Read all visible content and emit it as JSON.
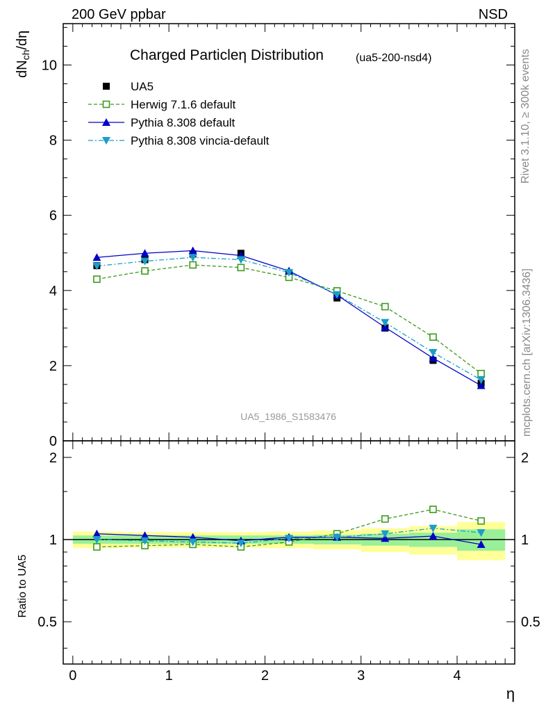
{
  "header": {
    "left": "200 GeV ppbar",
    "right": "NSD",
    "title": "Charged Particleη Distribution",
    "subtitle": "(ua5-200-nsd4)",
    "watermark": "UA5_1986_S1583476",
    "side_top": "Rivet 3.1.10, ≥ 300k events",
    "side_bottom": "mcplots.cern.ch [arXiv:1306.3436]"
  },
  "colors": {
    "data": "#000000",
    "herwig": "#3a9a1a",
    "pythia": "#0000c8",
    "vincia": "#1a9ec8",
    "band_outer": "#ffff99",
    "band_inner": "#99f099"
  },
  "chart_data": [
    {
      "type": "line",
      "panel": "main",
      "xlim": [
        -0.1,
        4.6
      ],
      "ylim": [
        0,
        11.1
      ],
      "ylabel": "dN_ch/dη",
      "yticks": [
        0,
        2,
        4,
        6,
        8,
        10
      ],
      "ytick_labels": [
        "0",
        "2",
        "4",
        "6",
        "8",
        "10"
      ],
      "legend_position": "top-left",
      "series": [
        {
          "name": "UA5",
          "key": "ua5",
          "marker": "square-filled",
          "x": [
            0.25,
            0.75,
            1.25,
            1.75,
            2.25,
            2.75,
            3.25,
            3.75,
            4.25
          ],
          "y": [
            4.66,
            4.82,
            4.97,
            4.99,
            4.44,
            3.8,
            3.0,
            2.14,
            1.53
          ]
        },
        {
          "name": "Herwig 7.1.6 default",
          "key": "herwig",
          "marker": "square-open",
          "line": "dashed",
          "x": [
            0.25,
            0.75,
            1.25,
            1.75,
            2.25,
            2.75,
            3.25,
            3.75,
            4.25
          ],
          "y": [
            4.3,
            4.52,
            4.68,
            4.61,
            4.35,
            3.99,
            3.57,
            2.76,
            1.79
          ]
        },
        {
          "name": "Pythia 8.308 default",
          "key": "pythia",
          "marker": "triangle-up",
          "line": "solid",
          "x": [
            0.25,
            0.75,
            1.25,
            1.75,
            2.25,
            2.75,
            3.25,
            3.75,
            4.25
          ],
          "y": [
            4.88,
            4.99,
            5.06,
            4.93,
            4.52,
            3.88,
            3.02,
            2.2,
            1.47
          ]
        },
        {
          "name": "Pythia 8.308 vincia-default",
          "key": "vincia",
          "marker": "triangle-down",
          "line": "dashdot",
          "x": [
            0.25,
            0.75,
            1.25,
            1.75,
            2.25,
            2.75,
            3.25,
            3.75,
            4.25
          ],
          "y": [
            4.65,
            4.78,
            4.88,
            4.82,
            4.48,
            3.89,
            3.15,
            2.35,
            1.62
          ]
        }
      ]
    },
    {
      "type": "line",
      "panel": "ratio",
      "xlim": [
        -0.1,
        4.6
      ],
      "ylim": [
        0.35,
        2.3
      ],
      "xlabel": "η",
      "ylabel": "Ratio to UA5",
      "xticks": [
        0,
        1,
        2,
        3,
        4
      ],
      "xtick_labels": [
        "0",
        "1",
        "2",
        "3",
        "4"
      ],
      "yticks": [
        0.5,
        1,
        2
      ],
      "ytick_labels": [
        "0.5",
        "1",
        "2"
      ],
      "bands": {
        "x_edges": [
          0,
          0.5,
          1.0,
          1.5,
          2.0,
          2.5,
          3.0,
          3.5,
          4.0,
          4.5
        ],
        "inner_half": [
          0.035,
          0.035,
          0.035,
          0.035,
          0.035,
          0.04,
          0.05,
          0.06,
          0.09
        ],
        "outer_half": [
          0.07,
          0.065,
          0.065,
          0.065,
          0.07,
          0.08,
          0.1,
          0.12,
          0.16
        ]
      },
      "series": [
        {
          "name": "Herwig 7.1.6 default",
          "key": "herwig",
          "x": [
            0.25,
            0.75,
            1.25,
            1.75,
            2.25,
            2.75,
            3.25,
            3.75,
            4.25
          ],
          "y": [
            0.94,
            0.95,
            0.96,
            0.94,
            0.98,
            1.05,
            1.19,
            1.29,
            1.17
          ]
        },
        {
          "name": "Pythia 8.308 default",
          "key": "pythia",
          "x": [
            0.25,
            0.75,
            1.25,
            1.75,
            2.25,
            2.75,
            3.25,
            3.75,
            4.25
          ],
          "y": [
            1.05,
            1.035,
            1.02,
            0.99,
            1.02,
            1.02,
            1.01,
            1.03,
            0.96
          ]
        },
        {
          "name": "Pythia 8.308 vincia-default",
          "key": "vincia",
          "x": [
            0.25,
            0.75,
            1.25,
            1.75,
            2.25,
            2.75,
            3.25,
            3.75,
            4.25
          ],
          "y": [
            1.0,
            0.99,
            0.98,
            0.97,
            1.01,
            1.02,
            1.05,
            1.1,
            1.06
          ]
        }
      ]
    }
  ]
}
